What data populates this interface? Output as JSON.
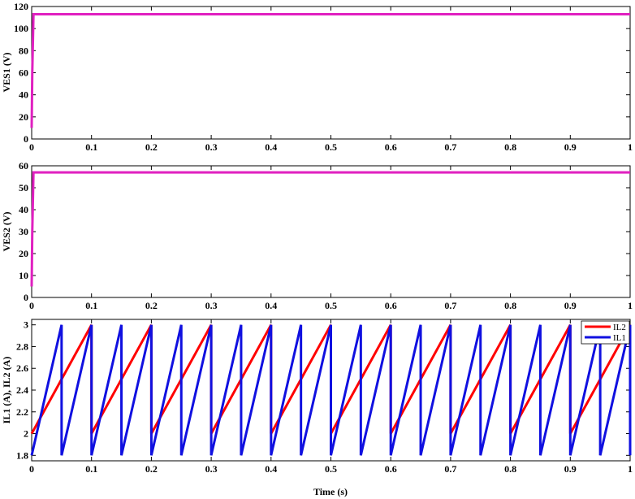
{
  "chart_data": [
    {
      "type": "line",
      "title": "",
      "xlabel": "",
      "ylabel": "VES1 (V)",
      "xlim": [
        0,
        1
      ],
      "ylim": [
        0,
        120
      ],
      "xticks": [
        "0",
        "0.1",
        "0.2",
        "0.3",
        "0.4",
        "0.5",
        "0.6",
        "0.7",
        "0.8",
        "0.9",
        "1"
      ],
      "yticks": [
        "0",
        "20",
        "40",
        "60",
        "80",
        "100",
        "120"
      ],
      "grid": false,
      "series": [
        {
          "color": "#e020c0",
          "x": [
            0,
            0.001,
            0.003,
            1.0
          ],
          "y": [
            10,
            60,
            113,
            113
          ]
        }
      ]
    },
    {
      "type": "line",
      "title": "",
      "xlabel": "",
      "ylabel": "VES2 (V)",
      "xlim": [
        0,
        1
      ],
      "ylim": [
        0,
        60
      ],
      "xticks": [
        "0",
        "0.1",
        "0.2",
        "0.3",
        "0.4",
        "0.5",
        "0.6",
        "0.7",
        "0.8",
        "0.9",
        "1"
      ],
      "yticks": [
        "0",
        "10",
        "20",
        "30",
        "40",
        "50",
        "60"
      ],
      "grid": false,
      "series": [
        {
          "color": "#e020c0",
          "x": [
            0,
            0.001,
            0.003,
            1.0
          ],
          "y": [
            5,
            30,
            57,
            57
          ]
        }
      ]
    },
    {
      "type": "line",
      "title": "",
      "xlabel": "Time (s)",
      "ylabel": "IL1 (A), IL2 (A)",
      "xlim": [
        0,
        1
      ],
      "ylim": [
        1.75,
        3.05
      ],
      "xticks": [
        "0",
        "0.1",
        "0.2",
        "0.3",
        "0.4",
        "0.5",
        "0.6",
        "0.7",
        "0.8",
        "0.9",
        "1"
      ],
      "yticks": [
        "1.8",
        "2",
        "2.2",
        "2.4",
        "2.6",
        "2.8",
        "3"
      ],
      "grid": false,
      "legend_position": "top-right",
      "series": [
        {
          "name": "IL2",
          "color": "#ff0000",
          "waveform": "sawtooth",
          "period": 0.1,
          "min": 2.0,
          "max": 3.0
        },
        {
          "name": "IL1",
          "color": "#1010e0",
          "waveform": "sawtooth",
          "period": 0.05,
          "min": 1.8,
          "max": 3.0
        }
      ]
    }
  ]
}
